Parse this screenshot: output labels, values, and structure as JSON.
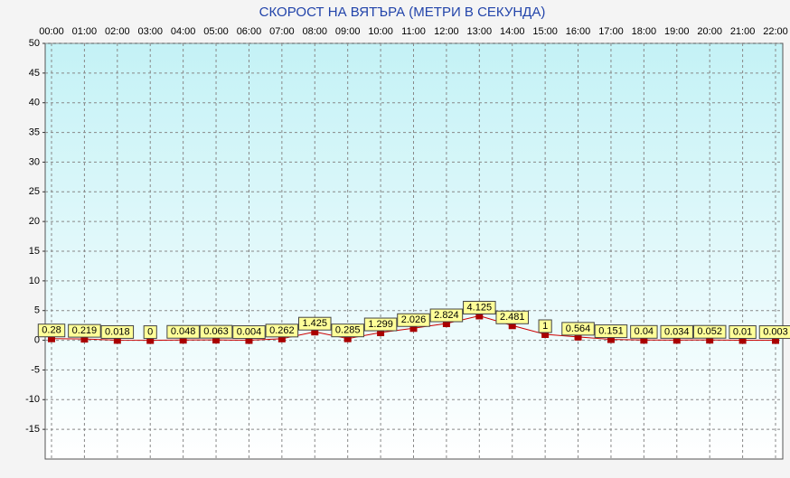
{
  "chart_data": {
    "type": "line",
    "title": "СКОРОСТ НА ВЯТЪРА (МЕТРИ В СЕКУНДА)",
    "categories": [
      "00:00",
      "01:00",
      "02:00",
      "03:00",
      "04:00",
      "05:00",
      "06:00",
      "07:00",
      "08:00",
      "09:00",
      "10:00",
      "11:00",
      "12:00",
      "13:00",
      "14:00",
      "15:00",
      "16:00",
      "17:00",
      "18:00",
      "19:00",
      "20:00",
      "21:00",
      "22:00"
    ],
    "values": [
      0.28,
      0.219,
      0.018,
      0,
      0.048,
      0.063,
      0.004,
      0.262,
      1.425,
      0.285,
      1.299,
      2.026,
      2.824,
      4.125,
      2.481,
      1,
      0.564,
      0.151,
      0.04,
      0.034,
      0.052,
      0.01,
      0.003
    ],
    "color": "#cc0000",
    "ylim": [
      -20,
      50
    ],
    "yticks": [
      -15,
      -10,
      -5,
      0,
      5,
      10,
      15,
      20,
      25,
      30,
      35,
      40,
      45,
      50
    ],
    "grid": true
  }
}
